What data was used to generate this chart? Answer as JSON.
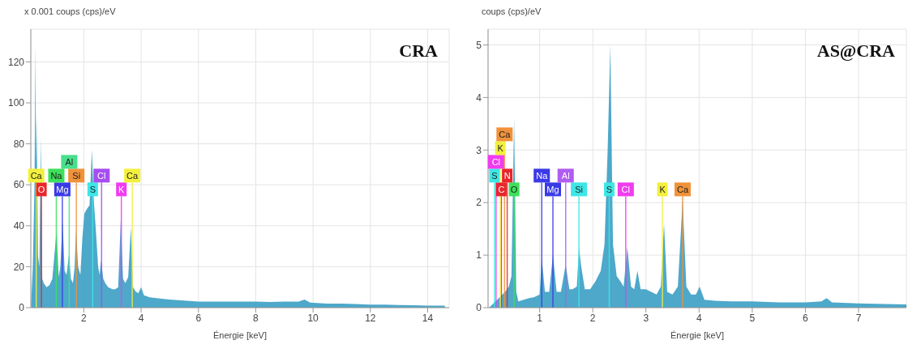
{
  "chart_data": [
    {
      "type": "area",
      "title": "CRA",
      "xlabel": "Énergie [keV]",
      "ylabel": "x 0.001 coups (cps)/eV",
      "xlim": [
        0.15,
        14.75
      ],
      "xticks": [
        2,
        4,
        6,
        8,
        10,
        12,
        14
      ],
      "ylim": [
        0,
        136
      ],
      "yticks": [
        0,
        20,
        40,
        60,
        80,
        100,
        120
      ],
      "grid": true,
      "series": [
        {
          "color": "#3a9ec4",
          "x": [
            0.16,
            0.22,
            0.28,
            0.31,
            0.33,
            0.35,
            0.4,
            0.45,
            0.5,
            0.55,
            0.6,
            0.7,
            0.8,
            0.9,
            0.97,
            1.05,
            1.12,
            1.18,
            1.26,
            1.33,
            1.4,
            1.48,
            1.55,
            1.62,
            1.68,
            1.73,
            1.8,
            1.88,
            1.95,
            2.02,
            2.1,
            2.2,
            2.28,
            2.35,
            2.42,
            2.5,
            2.55,
            2.6,
            2.68,
            2.75,
            2.85,
            3.0,
            3.1,
            3.2,
            3.29,
            3.37,
            3.45,
            3.55,
            3.64,
            3.72,
            3.8,
            3.9,
            4.0,
            4.1,
            4.3,
            4.6,
            5.0,
            5.5,
            6.0,
            6.5,
            7.0,
            7.5,
            8.0,
            8.5,
            9.0,
            9.5,
            9.7,
            9.9,
            10.5,
            11.0,
            11.5,
            12.0,
            12.5,
            13.0,
            13.5,
            14.0,
            14.6
          ],
          "values": [
            2,
            20,
            60,
            128,
            70,
            95,
            25,
            20,
            83,
            14,
            12,
            10,
            11,
            14,
            25,
            38,
            15,
            20,
            42,
            18,
            16,
            26,
            14,
            12,
            20,
            38,
            20,
            16,
            34,
            46,
            48,
            50,
            77,
            52,
            38,
            20,
            16,
            23,
            14,
            12,
            10,
            9,
            9,
            10,
            43,
            14,
            12,
            15,
            39,
            10,
            8,
            7,
            10,
            6,
            5,
            4.5,
            4,
            3.5,
            3,
            3,
            3,
            3,
            3,
            2.8,
            3,
            3,
            4,
            2.5,
            2,
            2,
            1.8,
            1.5,
            1.5,
            1.3,
            1.2,
            1,
            1
          ]
        }
      ],
      "ref_lines": [
        {
          "axis": "x",
          "value": 0.52,
          "label": "O",
          "color": "#e8262b"
        },
        {
          "axis": "x",
          "value": 1.25,
          "label": "Mg",
          "color": "#3a3ae8"
        },
        {
          "axis": "x",
          "value": 2.31,
          "label": "S",
          "color": "#3ee6e6"
        },
        {
          "axis": "x",
          "value": 3.31,
          "label": "K",
          "color": "#f03cf0"
        },
        {
          "axis": "x",
          "value": 0.34,
          "label": "Ca",
          "color": "#f2f03c"
        },
        {
          "axis": "x",
          "value": 1.04,
          "label": "Na",
          "color": "#3de05a"
        },
        {
          "axis": "x",
          "value": 1.74,
          "label": "Si",
          "color": "#f0923a"
        },
        {
          "axis": "x",
          "value": 2.62,
          "label": "Cl",
          "color": "#a64df0"
        },
        {
          "axis": "x",
          "value": 3.69,
          "label": "Ca",
          "color": "#f2f03c"
        },
        {
          "axis": "x",
          "value": 1.49,
          "label": "Al",
          "color": "#48e08a"
        }
      ]
    },
    {
      "type": "area",
      "title": "AS@CRA",
      "xlabel": "Énergie [keV]",
      "ylabel": "coups (cps)/eV",
      "xlim": [
        0.03,
        7.9
      ],
      "xticks": [
        1,
        2,
        3,
        4,
        5,
        6,
        7
      ],
      "ylim": [
        0,
        5.3
      ],
      "yticks": [
        0,
        1,
        2,
        3,
        4,
        5
      ],
      "grid": true,
      "series": [
        {
          "color": "#3a9ec4",
          "x": [
            0.05,
            0.15,
            0.25,
            0.35,
            0.42,
            0.47,
            0.52,
            0.56,
            0.6,
            0.7,
            0.8,
            0.9,
            1.0,
            1.04,
            1.1,
            1.18,
            1.25,
            1.32,
            1.4,
            1.49,
            1.56,
            1.62,
            1.7,
            1.74,
            1.78,
            1.85,
            1.95,
            2.05,
            2.15,
            2.22,
            2.28,
            2.33,
            2.38,
            2.45,
            2.52,
            2.58,
            2.65,
            2.72,
            2.78,
            2.84,
            2.9,
            3.0,
            3.1,
            3.2,
            3.28,
            3.34,
            3.4,
            3.5,
            3.6,
            3.69,
            3.76,
            3.85,
            3.94,
            4.01,
            4.1,
            4.3,
            4.6,
            5.0,
            5.5,
            6.0,
            6.3,
            6.4,
            6.5,
            7.0,
            7.5,
            7.9
          ],
          "values": [
            0,
            0.1,
            0.2,
            0.3,
            0.4,
            0.6,
            3.6,
            0.3,
            0.12,
            0.15,
            0.18,
            0.2,
            0.25,
            0.95,
            0.3,
            0.3,
            1.0,
            0.3,
            0.3,
            0.82,
            0.35,
            0.35,
            0.4,
            1.15,
            0.8,
            0.35,
            0.35,
            0.5,
            0.7,
            1.2,
            3.0,
            5.0,
            1.2,
            0.6,
            0.5,
            0.4,
            1.15,
            0.4,
            0.35,
            0.7,
            0.35,
            0.35,
            0.3,
            0.25,
            0.4,
            1.6,
            0.3,
            0.25,
            0.4,
            2.05,
            0.4,
            0.25,
            0.25,
            0.4,
            0.15,
            0.13,
            0.12,
            0.12,
            0.1,
            0.1,
            0.12,
            0.18,
            0.1,
            0.08,
            0.07,
            0.06
          ]
        }
      ],
      "ref_lines": [
        {
          "axis": "x",
          "value": 0.28,
          "label": "C",
          "color": "#e8262b"
        },
        {
          "axis": "x",
          "value": 0.52,
          "label": "O",
          "color": "#3de05a"
        },
        {
          "axis": "x",
          "value": 1.25,
          "label": "Mg",
          "color": "#3a3ae8"
        },
        {
          "axis": "x",
          "value": 1.74,
          "label": "Si",
          "color": "#3ee6e6"
        },
        {
          "axis": "x",
          "value": 2.31,
          "label": "S",
          "color": "#3ee6e6"
        },
        {
          "axis": "x",
          "value": 2.62,
          "label": "Cl",
          "color": "#f03cf0"
        },
        {
          "axis": "x",
          "value": 3.31,
          "label": "K",
          "color": "#f2f03c"
        },
        {
          "axis": "x",
          "value": 3.69,
          "label": "Ca",
          "color": "#f0923a"
        },
        {
          "axis": "x",
          "value": 1.04,
          "label": "Na",
          "color": "#3a3ae8"
        },
        {
          "axis": "x",
          "value": 1.49,
          "label": "Al",
          "color": "#b05cf0"
        },
        {
          "axis": "x",
          "value": 0.15,
          "label": "S",
          "color": "#3ee6e6"
        },
        {
          "axis": "x",
          "value": 0.39,
          "label": "N",
          "color": "#e8262b"
        },
        {
          "axis": "x",
          "value": 0.18,
          "label": "Cl",
          "color": "#f03cf0"
        },
        {
          "axis": "x",
          "value": 0.26,
          "label": "K",
          "color": "#f2f03c"
        },
        {
          "axis": "x",
          "value": 0.34,
          "label": "Ca",
          "color": "#f0923a"
        }
      ]
    }
  ]
}
